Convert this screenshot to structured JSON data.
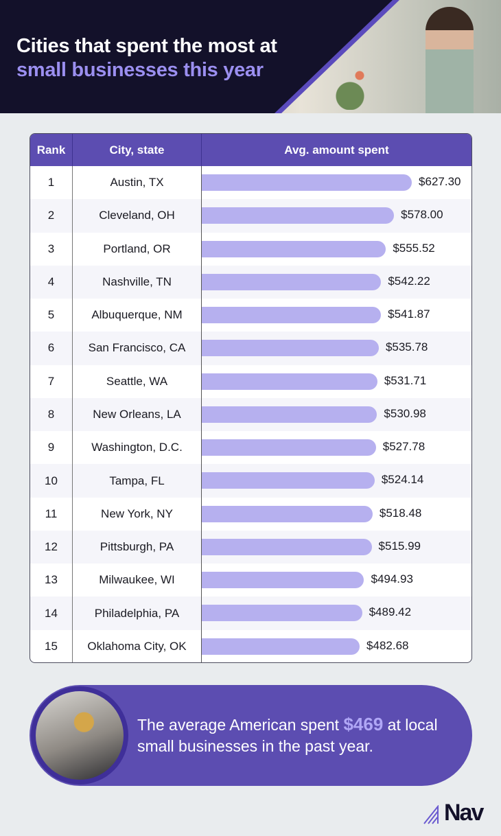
{
  "header": {
    "title_line1": "Cities that spent the most at",
    "title_line2": "small businesses this year"
  },
  "chart_data": {
    "type": "bar",
    "orientation": "horizontal",
    "columns": [
      "Rank",
      "City, state",
      "Avg. amount spent"
    ],
    "ranks": [
      1,
      2,
      3,
      4,
      5,
      6,
      7,
      8,
      9,
      10,
      11,
      12,
      13,
      14,
      15
    ],
    "categories": [
      "Austin, TX",
      "Cleveland, OH",
      "Portland, OR",
      "Nashville, TN",
      "Albuquerque, NM",
      "San Francisco, CA",
      "Seattle, WA",
      "New Orleans, LA",
      "Washington, D.C.",
      "Tampa, FL",
      "New York, NY",
      "Pittsburgh, PA",
      "Milwaukee, WI",
      "Philadelphia, PA",
      "Oklahoma City, OK"
    ],
    "values": [
      627.3,
      578.0,
      555.52,
      542.22,
      541.87,
      535.78,
      531.71,
      530.98,
      527.78,
      524.14,
      518.48,
      515.99,
      494.93,
      489.42,
      482.68
    ],
    "labels": [
      "$627.30",
      "$578.00",
      "$555.52",
      "$542.22",
      "$541.87",
      "$535.78",
      "$531.71",
      "$530.98",
      "$527.78",
      "$524.14",
      "$518.48",
      "$515.99",
      "$494.93",
      "$489.42",
      "$482.68"
    ],
    "bar_color": "#b6b0ef",
    "header_color": "#5c4db1"
  },
  "callout": {
    "before": "The average American spent ",
    "amount": "$469",
    "after": " at local small businesses in the past year."
  },
  "brand": {
    "logo": "Nav",
    "accent": "#5c4db1"
  }
}
